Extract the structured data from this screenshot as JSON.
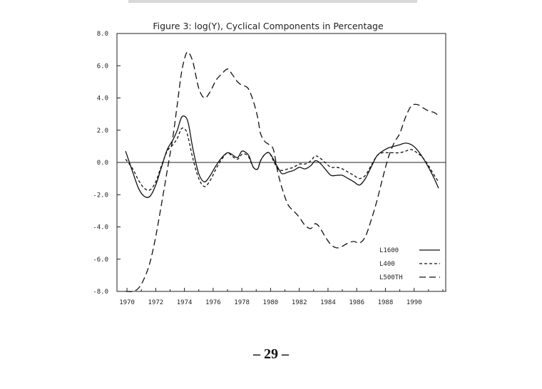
{
  "page": {
    "number": "– 29 –"
  },
  "chart_data": {
    "type": "line",
    "title": "Figure 3:  log(Y), Cyclical Components in Percentage",
    "xlabel": "",
    "ylabel": "",
    "xlim": [
      1969.3,
      1992.2
    ],
    "ylim": [
      -8.0,
      8.0
    ],
    "x_ticks": [
      1970,
      1972,
      1974,
      1976,
      1978,
      1980,
      1982,
      1984,
      1986,
      1988,
      1990
    ],
    "x_tick_labels": [
      "1970",
      "1972",
      "1974",
      "1976",
      "1978",
      "1980",
      "1982",
      "1984",
      "1986",
      "1988",
      "1990"
    ],
    "y_ticks": [
      8.0,
      6.0,
      4.0,
      2.0,
      0.0,
      -2.0,
      -4.0,
      -6.0,
      -8.0
    ],
    "y_tick_labels": [
      "8.0",
      "6.0",
      "4.0",
      "2.0",
      "0.0",
      "-2.0",
      "-4.0",
      "-6.0",
      "-8.0"
    ],
    "zero_line": true,
    "grid": false,
    "legend_position": "bottom-right",
    "series": [
      {
        "name": "L1600",
        "line_style": "solid",
        "x": [
          1969.9,
          1970.4,
          1970.8,
          1971.2,
          1971.6,
          1972.0,
          1972.4,
          1972.8,
          1973.2,
          1973.5,
          1973.8,
          1974.1,
          1974.3,
          1974.6,
          1975.0,
          1975.4,
          1975.8,
          1976.2,
          1976.6,
          1977.0,
          1977.3,
          1977.7,
          1978.0,
          1978.3,
          1978.5,
          1978.8,
          1979.1,
          1979.3,
          1979.6,
          1979.9,
          1980.2,
          1980.5,
          1980.8,
          1981.2,
          1981.6,
          1982.0,
          1982.4,
          1982.8,
          1983.1,
          1983.4,
          1983.8,
          1984.2,
          1984.6,
          1985.0,
          1985.4,
          1985.8,
          1986.2,
          1986.6,
          1987.0,
          1987.4,
          1987.8,
          1988.2,
          1988.6,
          1989.0,
          1989.4,
          1989.8,
          1990.2,
          1990.6,
          1991.0,
          1991.4,
          1991.7
        ],
        "values": [
          0.7,
          -0.6,
          -1.6,
          -2.1,
          -2.1,
          -1.4,
          -0.3,
          0.8,
          1.4,
          2.0,
          2.8,
          2.8,
          2.3,
          0.8,
          -0.7,
          -1.2,
          -0.8,
          -0.2,
          0.3,
          0.6,
          0.5,
          0.3,
          0.7,
          0.6,
          0.4,
          -0.3,
          -0.4,
          0.1,
          0.5,
          0.6,
          0.2,
          -0.3,
          -0.7,
          -0.6,
          -0.5,
          -0.3,
          -0.4,
          -0.2,
          0.1,
          0.0,
          -0.4,
          -0.8,
          -0.8,
          -0.8,
          -1.0,
          -1.2,
          -1.4,
          -1.0,
          -0.3,
          0.4,
          0.7,
          0.9,
          1.0,
          1.1,
          1.2,
          1.1,
          0.8,
          0.3,
          -0.3,
          -1.0,
          -1.6
        ]
      },
      {
        "name": "L400",
        "line_style": "short-dash",
        "x": [
          1969.9,
          1970.4,
          1970.8,
          1971.2,
          1971.6,
          1972.0,
          1972.4,
          1972.8,
          1973.2,
          1973.5,
          1973.8,
          1974.1,
          1974.3,
          1974.6,
          1975.0,
          1975.4,
          1975.8,
          1976.2,
          1976.6,
          1977.0,
          1977.3,
          1977.7,
          1978.0,
          1978.3,
          1978.5,
          1978.8,
          1979.1,
          1979.3,
          1979.6,
          1979.9,
          1980.2,
          1980.5,
          1980.8,
          1981.2,
          1981.6,
          1982.0,
          1982.4,
          1982.8,
          1983.1,
          1983.4,
          1983.8,
          1984.2,
          1984.6,
          1985.0,
          1985.4,
          1985.8,
          1986.2,
          1986.6,
          1987.0,
          1987.4,
          1987.8,
          1988.2,
          1988.6,
          1989.0,
          1989.4,
          1989.8,
          1990.2,
          1990.6,
          1991.0,
          1991.4,
          1991.7
        ],
        "values": [
          0.2,
          -0.4,
          -1.1,
          -1.6,
          -1.7,
          -1.2,
          -0.2,
          0.7,
          1.1,
          1.5,
          2.1,
          2.0,
          1.4,
          0.2,
          -1.0,
          -1.5,
          -1.1,
          -0.4,
          0.2,
          0.6,
          0.4,
          0.2,
          0.5,
          0.5,
          0.3,
          -0.3,
          -0.4,
          0.1,
          0.5,
          0.6,
          0.1,
          -0.4,
          -0.5,
          -0.4,
          -0.3,
          -0.1,
          -0.1,
          0.1,
          0.4,
          0.3,
          0.0,
          -0.3,
          -0.3,
          -0.4,
          -0.6,
          -0.8,
          -1.0,
          -0.8,
          -0.2,
          0.4,
          0.6,
          0.6,
          0.6,
          0.6,
          0.7,
          0.8,
          0.6,
          0.3,
          -0.2,
          -0.8,
          -1.2
        ]
      },
      {
        "name": "L500TH",
        "line_style": "long-dash",
        "x": [
          1969.9,
          1970.4,
          1970.8,
          1971.2,
          1971.6,
          1972.0,
          1972.4,
          1972.8,
          1973.2,
          1973.5,
          1973.8,
          1974.1,
          1974.3,
          1974.6,
          1975.0,
          1975.4,
          1975.8,
          1976.2,
          1976.6,
          1977.0,
          1977.3,
          1977.7,
          1978.0,
          1978.3,
          1978.5,
          1978.8,
          1979.1,
          1979.3,
          1979.6,
          1979.9,
          1980.2,
          1980.5,
          1980.8,
          1981.2,
          1981.6,
          1982.0,
          1982.4,
          1982.8,
          1983.1,
          1983.4,
          1983.8,
          1984.2,
          1984.6,
          1985.0,
          1985.4,
          1985.8,
          1986.2,
          1986.6,
          1987.0,
          1987.4,
          1987.8,
          1988.2,
          1988.6,
          1989.0,
          1989.4,
          1989.8,
          1990.2,
          1990.6,
          1991.0,
          1991.4,
          1991.7
        ],
        "values": [
          -8.0,
          -8.0,
          -7.8,
          -7.2,
          -6.2,
          -4.6,
          -2.6,
          -0.5,
          1.6,
          3.6,
          5.6,
          6.7,
          6.8,
          6.2,
          4.6,
          4.0,
          4.4,
          5.1,
          5.5,
          5.8,
          5.5,
          5.0,
          4.8,
          4.7,
          4.5,
          3.8,
          2.8,
          1.8,
          1.3,
          1.1,
          0.8,
          -0.6,
          -1.6,
          -2.6,
          -3.0,
          -3.4,
          -3.9,
          -4.1,
          -3.8,
          -4.0,
          -4.6,
          -5.1,
          -5.3,
          -5.2,
          -5.0,
          -4.9,
          -5.0,
          -4.6,
          -3.6,
          -2.4,
          -1.0,
          0.3,
          1.2,
          1.8,
          2.8,
          3.5,
          3.6,
          3.4,
          3.2,
          3.1,
          2.9
        ]
      }
    ]
  }
}
